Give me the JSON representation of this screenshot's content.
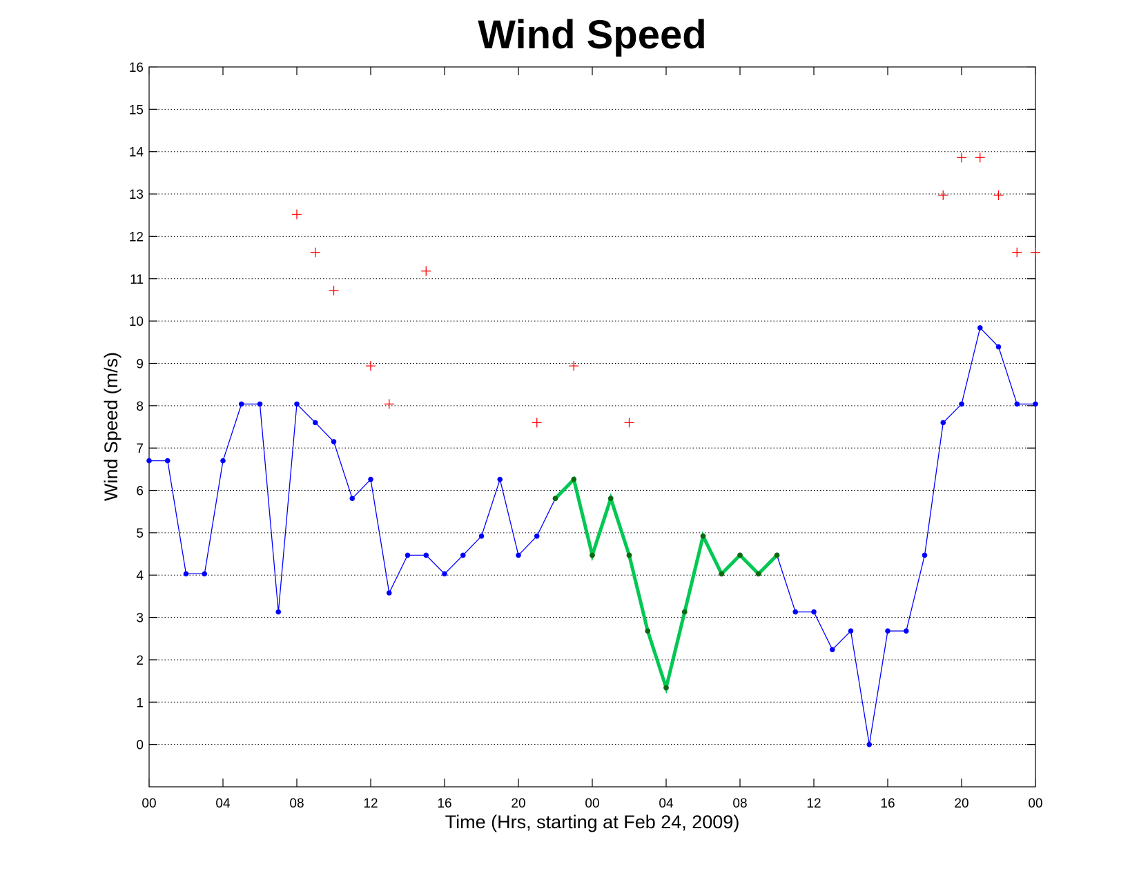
{
  "chart_data": {
    "type": "line",
    "title": "Wind Speed",
    "xlabel": "Time (Hrs, starting at Feb 24, 2009)",
    "ylabel": "Wind Speed (m/s)",
    "xlim": [
      0,
      48
    ],
    "ylim": [
      -1,
      16
    ],
    "y_grid": true,
    "x_grid": false,
    "x_ticks": [
      0,
      4,
      8,
      12,
      16,
      20,
      24,
      28,
      32,
      36,
      40,
      44,
      48
    ],
    "x_tick_labels": [
      "00",
      "04",
      "08",
      "12",
      "16",
      "20",
      "00",
      "04",
      "08",
      "12",
      "16",
      "20",
      "00"
    ],
    "y_ticks": [
      0,
      1,
      2,
      3,
      4,
      5,
      6,
      7,
      8,
      9,
      10,
      11,
      12,
      13,
      14,
      15,
      16
    ],
    "series": [
      {
        "style": "line-dots",
        "color": "#0000ff",
        "x": [
          0,
          1,
          2,
          3,
          4,
          5,
          6,
          7,
          8,
          9,
          10,
          11,
          12,
          13,
          14,
          15,
          16,
          17,
          18,
          19,
          20,
          21,
          22,
          23,
          24,
          25,
          26,
          27,
          28,
          29,
          30,
          31,
          32,
          33,
          34,
          35,
          36,
          37,
          38,
          39,
          40,
          41,
          42,
          43,
          44,
          45,
          46,
          47,
          48
        ],
        "y": [
          6.7,
          6.7,
          4.03,
          4.03,
          6.7,
          8.04,
          8.04,
          3.13,
          8.04,
          7.6,
          7.15,
          5.81,
          6.26,
          3.58,
          4.47,
          4.47,
          4.03,
          4.47,
          4.92,
          6.26,
          4.47,
          4.92,
          5.81,
          6.26,
          4.47,
          5.81,
          4.47,
          2.68,
          1.34,
          3.13,
          4.92,
          4.03,
          4.47,
          4.03,
          4.47,
          3.13,
          3.13,
          2.24,
          2.68,
          0,
          2.68,
          2.68,
          4.47,
          7.6,
          8.04,
          9.84,
          9.39,
          8.04,
          8.04
        ]
      },
      {
        "style": "thick-line",
        "color": "#00c853",
        "marker_color": "#0a6b0a",
        "x": [
          22,
          23,
          24,
          25,
          26,
          27,
          28,
          29,
          30,
          31,
          32,
          33,
          34
        ],
        "y": [
          5.81,
          6.26,
          4.47,
          5.81,
          4.47,
          2.68,
          1.34,
          3.13,
          4.92,
          4.03,
          4.47,
          4.03,
          4.47
        ]
      },
      {
        "style": "plus-markers",
        "color": "#ff0000",
        "x": [
          8,
          9,
          10,
          12,
          13,
          15,
          21,
          23,
          26,
          43,
          44,
          45,
          46,
          47,
          48
        ],
        "y": [
          12.52,
          11.62,
          10.72,
          8.94,
          8.04,
          11.18,
          7.6,
          8.94,
          7.6,
          12.97,
          13.86,
          13.86,
          12.97,
          11.62,
          11.62
        ]
      }
    ]
  }
}
